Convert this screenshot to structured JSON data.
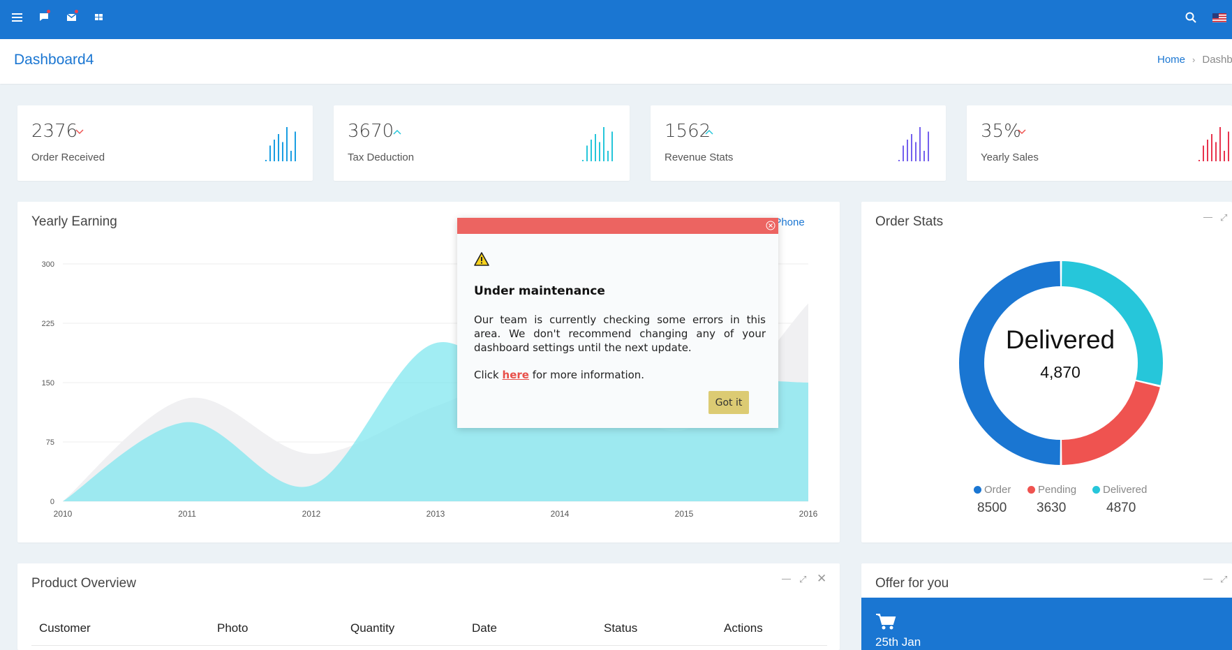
{
  "topbar": {
    "icons": [
      "menu-icon",
      "chat-icon",
      "mail-icon",
      "apps-grid-icon",
      "search-icon",
      "us-flag-icon"
    ],
    "color": "#1a76d2"
  },
  "page": {
    "title": "Dashboard4",
    "breadcrumb": {
      "home": "Home",
      "current": "Dashb"
    }
  },
  "stats": [
    {
      "value": "2376",
      "label": "Order Received",
      "trend": "down",
      "color": "#1a9ee2"
    },
    {
      "value": "3670",
      "label": "Tax Deduction",
      "trend": "up",
      "color": "#26c6da"
    },
    {
      "value": "1562",
      "label": "Revenue Stats",
      "trend": "up",
      "color": "#7460ee"
    },
    {
      "value": "35%",
      "label": "Yearly Sales",
      "trend": "down",
      "color": "#e8344e"
    }
  ],
  "earning": {
    "title": "Yearly Earning",
    "legend": "iPhone"
  },
  "chart_data": {
    "type": "area",
    "title": "Yearly Earning",
    "x": [
      "2010",
      "2011",
      "2012",
      "2013",
      "2014",
      "2015",
      "2016"
    ],
    "yticks": [
      0,
      75,
      150,
      225,
      300
    ],
    "ylim": [
      0,
      300
    ],
    "series": [
      {
        "name": "",
        "color": "#f0f0f2",
        "values": [
          0,
          130,
          60,
          120,
          170,
          90,
          250
        ]
      },
      {
        "name": "iPhone",
        "color": "#7de6ee",
        "values": [
          0,
          100,
          20,
          200,
          100,
          150,
          150
        ]
      }
    ],
    "grid": true
  },
  "order_stats": {
    "title": "Order Stats",
    "center_label": "Delivered",
    "center_value": "4,870",
    "legend": [
      {
        "label": "Order",
        "value": "8500",
        "color": "#1a76d2"
      },
      {
        "label": "Pending",
        "value": "3630",
        "color": "#ef5350"
      },
      {
        "label": "Delivered",
        "value": "4870",
        "color": "#26c6da"
      }
    ]
  },
  "product_overview": {
    "title": "Product Overview",
    "columns": [
      "Customer",
      "Photo",
      "Quantity",
      "Date",
      "Status",
      "Actions"
    ]
  },
  "offer": {
    "title": "Offer for you",
    "date": "25th Jan"
  },
  "modal": {
    "title": "Under maintenance",
    "body": "Our team is currently checking some errors in this area. We don't recommend changing any of your dashboard settings until the next update.",
    "more_prefix": "Click ",
    "more_link": "here",
    "more_suffix": " for more information.",
    "button": "Got it"
  }
}
